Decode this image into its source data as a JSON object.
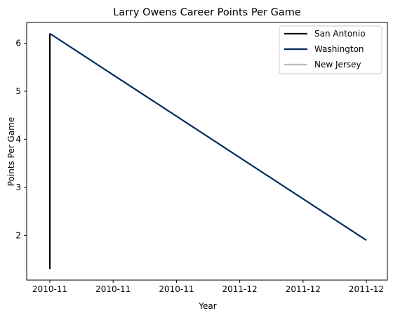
{
  "chart_data": {
    "type": "line",
    "title": "Larry Owens Career Points Per Game",
    "xlabel": "Year",
    "ylabel": "Points Per Game",
    "x_tick_labels": [
      "2010-11",
      "2010-11",
      "2010-11",
      "2011-12",
      "2011-12",
      "2011-12"
    ],
    "y_ticks": [
      2,
      3,
      4,
      5,
      6
    ],
    "ylim": [
      1.07,
      6.43
    ],
    "x_categories": [
      "2010-11",
      "2011-12"
    ],
    "grid": false,
    "legend_position": "top-right",
    "series": [
      {
        "name": "San Antonio",
        "color": "#000000",
        "x": [
          "2010-11",
          "2010-11"
        ],
        "y": [
          1.3,
          6.2
        ]
      },
      {
        "name": "Washington",
        "color": "#002B5C",
        "x": [
          "2010-11",
          "2011-12"
        ],
        "y": [
          6.2,
          1.9
        ]
      },
      {
        "name": "New Jersey",
        "color": "#BDBDBD",
        "x": [],
        "y": []
      }
    ]
  }
}
